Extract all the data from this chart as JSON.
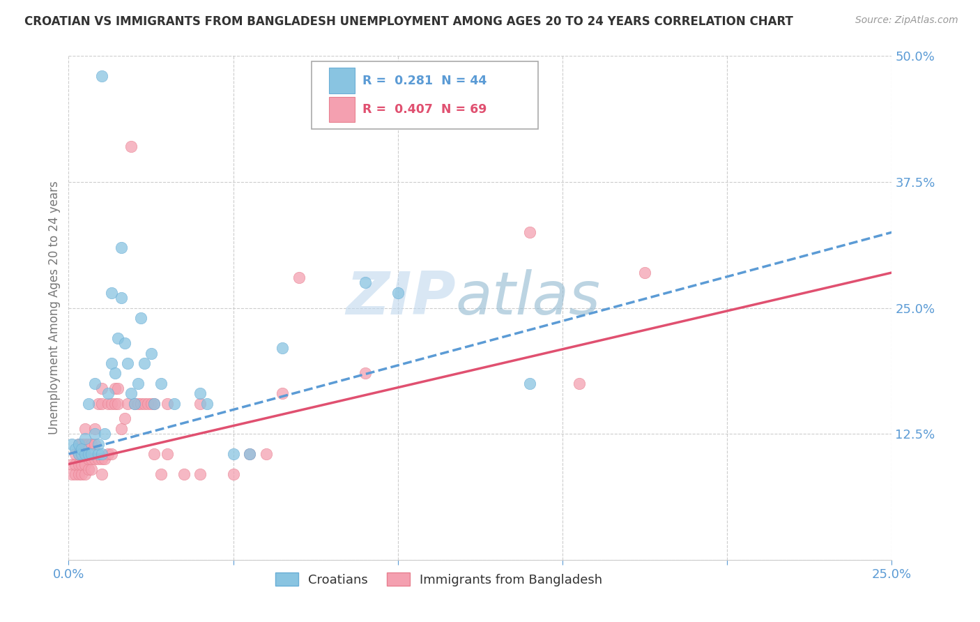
{
  "title": "CROATIAN VS IMMIGRANTS FROM BANGLADESH UNEMPLOYMENT AMONG AGES 20 TO 24 YEARS CORRELATION CHART",
  "source": "Source: ZipAtlas.com",
  "ylabel": "Unemployment Among Ages 20 to 24 years",
  "R_croatian": 0.281,
  "N_croatian": 44,
  "R_bangladesh": 0.407,
  "N_bangladesh": 69,
  "croatian_color": "#89c4e1",
  "bangladesh_color": "#f4a0b0",
  "trend_croatian_color": "#5b9bd5",
  "trend_bangladesh_color": "#e05070",
  "watermark_top": "ZIP",
  "watermark_bot": "atlas",
  "watermark_color_top": "#c8dff0",
  "watermark_color_bot": "#a8c8d8",
  "croatian_label": "Croatians",
  "bangladesh_label": "Immigrants from Bangladesh",
  "xlim": [
    0.0,
    0.25
  ],
  "ylim": [
    0.0,
    0.5
  ],
  "trendline_croatian": [
    0.0,
    0.105,
    0.25,
    0.325
  ],
  "trendline_bangladesh": [
    0.0,
    0.095,
    0.25,
    0.285
  ],
  "croatian_points": [
    [
      0.001,
      0.115
    ],
    [
      0.002,
      0.11
    ],
    [
      0.003,
      0.105
    ],
    [
      0.003,
      0.115
    ],
    [
      0.004,
      0.105
    ],
    [
      0.004,
      0.11
    ],
    [
      0.005,
      0.105
    ],
    [
      0.005,
      0.12
    ],
    [
      0.006,
      0.105
    ],
    [
      0.006,
      0.155
    ],
    [
      0.007,
      0.105
    ],
    [
      0.008,
      0.125
    ],
    [
      0.008,
      0.175
    ],
    [
      0.009,
      0.105
    ],
    [
      0.009,
      0.115
    ],
    [
      0.01,
      0.105
    ],
    [
      0.011,
      0.125
    ],
    [
      0.012,
      0.165
    ],
    [
      0.013,
      0.195
    ],
    [
      0.013,
      0.265
    ],
    [
      0.014,
      0.185
    ],
    [
      0.015,
      0.22
    ],
    [
      0.016,
      0.26
    ],
    [
      0.016,
      0.31
    ],
    [
      0.017,
      0.215
    ],
    [
      0.018,
      0.195
    ],
    [
      0.019,
      0.165
    ],
    [
      0.02,
      0.155
    ],
    [
      0.021,
      0.175
    ],
    [
      0.022,
      0.24
    ],
    [
      0.023,
      0.195
    ],
    [
      0.025,
      0.205
    ],
    [
      0.026,
      0.155
    ],
    [
      0.028,
      0.175
    ],
    [
      0.032,
      0.155
    ],
    [
      0.04,
      0.165
    ],
    [
      0.042,
      0.155
    ],
    [
      0.05,
      0.105
    ],
    [
      0.055,
      0.105
    ],
    [
      0.065,
      0.21
    ],
    [
      0.09,
      0.275
    ],
    [
      0.1,
      0.265
    ],
    [
      0.14,
      0.175
    ],
    [
      0.01,
      0.48
    ]
  ],
  "bangladesh_points": [
    [
      0.001,
      0.095
    ],
    [
      0.001,
      0.085
    ],
    [
      0.002,
      0.085
    ],
    [
      0.002,
      0.095
    ],
    [
      0.002,
      0.105
    ],
    [
      0.003,
      0.085
    ],
    [
      0.003,
      0.095
    ],
    [
      0.003,
      0.105
    ],
    [
      0.003,
      0.115
    ],
    [
      0.004,
      0.085
    ],
    [
      0.004,
      0.095
    ],
    [
      0.004,
      0.105
    ],
    [
      0.004,
      0.115
    ],
    [
      0.005,
      0.085
    ],
    [
      0.005,
      0.095
    ],
    [
      0.005,
      0.105
    ],
    [
      0.005,
      0.115
    ],
    [
      0.005,
      0.13
    ],
    [
      0.006,
      0.09
    ],
    [
      0.006,
      0.1
    ],
    [
      0.006,
      0.115
    ],
    [
      0.007,
      0.09
    ],
    [
      0.007,
      0.1
    ],
    [
      0.007,
      0.115
    ],
    [
      0.008,
      0.1
    ],
    [
      0.008,
      0.115
    ],
    [
      0.008,
      0.13
    ],
    [
      0.009,
      0.1
    ],
    [
      0.009,
      0.155
    ],
    [
      0.01,
      0.085
    ],
    [
      0.01,
      0.1
    ],
    [
      0.01,
      0.155
    ],
    [
      0.01,
      0.17
    ],
    [
      0.011,
      0.1
    ],
    [
      0.012,
      0.105
    ],
    [
      0.012,
      0.155
    ],
    [
      0.013,
      0.105
    ],
    [
      0.013,
      0.155
    ],
    [
      0.014,
      0.155
    ],
    [
      0.014,
      0.17
    ],
    [
      0.015,
      0.155
    ],
    [
      0.015,
      0.17
    ],
    [
      0.016,
      0.13
    ],
    [
      0.017,
      0.14
    ],
    [
      0.018,
      0.155
    ],
    [
      0.019,
      0.41
    ],
    [
      0.02,
      0.155
    ],
    [
      0.021,
      0.155
    ],
    [
      0.022,
      0.155
    ],
    [
      0.023,
      0.155
    ],
    [
      0.024,
      0.155
    ],
    [
      0.025,
      0.155
    ],
    [
      0.026,
      0.105
    ],
    [
      0.026,
      0.155
    ],
    [
      0.028,
      0.085
    ],
    [
      0.03,
      0.105
    ],
    [
      0.03,
      0.155
    ],
    [
      0.035,
      0.085
    ],
    [
      0.04,
      0.085
    ],
    [
      0.04,
      0.155
    ],
    [
      0.05,
      0.085
    ],
    [
      0.055,
      0.105
    ],
    [
      0.06,
      0.105
    ],
    [
      0.065,
      0.165
    ],
    [
      0.07,
      0.28
    ],
    [
      0.09,
      0.185
    ],
    [
      0.14,
      0.325
    ],
    [
      0.155,
      0.175
    ],
    [
      0.175,
      0.285
    ]
  ]
}
